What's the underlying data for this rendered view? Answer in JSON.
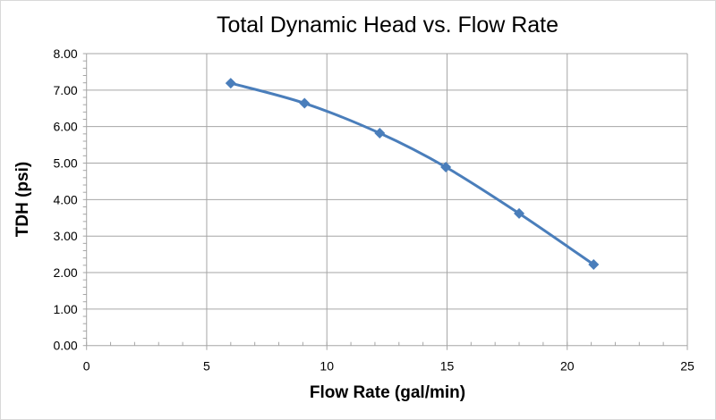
{
  "chart_data": {
    "type": "line",
    "title": "Total Dynamic Head vs. Flow Rate",
    "xlabel": "Flow Rate (gal/min)",
    "ylabel": "TDH (psi)",
    "xlim": [
      0,
      25
    ],
    "ylim": [
      0,
      8
    ],
    "x_ticks": [
      "0",
      "5",
      "10",
      "15",
      "20",
      "25"
    ],
    "y_ticks": [
      "0.00",
      "1.00",
      "2.00",
      "3.00",
      "4.00",
      "5.00",
      "6.00",
      "7.00",
      "8.00"
    ],
    "grid": true,
    "smooth": true,
    "marker": "diamond",
    "color": "#4a7ebb",
    "series": [
      {
        "x": [
          6.0,
          9.07,
          12.2,
          14.95,
          18.0,
          21.1
        ],
        "y": [
          7.19,
          6.64,
          5.82,
          4.89,
          3.62,
          2.22
        ]
      }
    ]
  }
}
